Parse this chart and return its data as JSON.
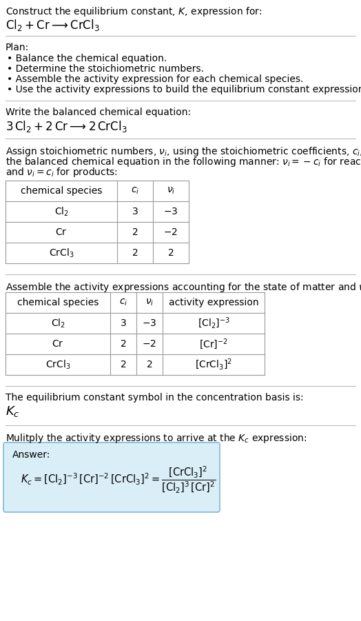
{
  "title_line1": "Construct the equilibrium constant, $K$, expression for:",
  "title_line2": "$\\mathrm{Cl_2 + Cr \\longrightarrow CrCl_3}$",
  "plan_header": "Plan:",
  "plan_items": [
    "• Balance the chemical equation.",
    "• Determine the stoichiometric numbers.",
    "• Assemble the activity expression for each chemical species.",
    "• Use the activity expressions to build the equilibrium constant expression."
  ],
  "balanced_header": "Write the balanced chemical equation:",
  "balanced_eq": "$3\\,\\mathrm{Cl_2} + 2\\,\\mathrm{Cr} \\longrightarrow 2\\,\\mathrm{CrCl_3}$",
  "stoich_intro_lines": [
    "Assign stoichiometric numbers, $\\nu_i$, using the stoichiometric coefficients, $c_i$, from",
    "the balanced chemical equation in the following manner: $\\nu_i = -c_i$ for reactants",
    "and $\\nu_i = c_i$ for products:"
  ],
  "table1_headers": [
    "chemical species",
    "$c_i$",
    "$\\nu_i$"
  ],
  "table1_rows": [
    [
      "$\\mathrm{Cl_2}$",
      "3",
      "$-3$"
    ],
    [
      "$\\mathrm{Cr}$",
      "2",
      "$-2$"
    ],
    [
      "$\\mathrm{CrCl_3}$",
      "2",
      "2"
    ]
  ],
  "assemble_header": "Assemble the activity expressions accounting for the state of matter and $\\nu_i$:",
  "table2_headers": [
    "chemical species",
    "$c_i$",
    "$\\nu_i$",
    "activity expression"
  ],
  "table2_rows": [
    [
      "$\\mathrm{Cl_2}$",
      "3",
      "$-3$",
      "$[\\mathrm{Cl_2}]^{-3}$"
    ],
    [
      "$\\mathrm{Cr}$",
      "2",
      "$-2$",
      "$[\\mathrm{Cr}]^{-2}$"
    ],
    [
      "$\\mathrm{CrCl_3}$",
      "2",
      "2",
      "$[\\mathrm{CrCl_3}]^{2}$"
    ]
  ],
  "kc_symbol_text": "The equilibrium constant symbol in the concentration basis is:",
  "kc_symbol": "$K_c$",
  "multiply_text": "Mulitply the activity expressions to arrive at the $K_c$ expression:",
  "answer_label": "Answer:",
  "answer_eq_line1": "$K_c = [\\mathrm{Cl_2}]^{-3}\\,[\\mathrm{Cr}]^{-2}\\,[\\mathrm{CrCl_3}]^{2} = \\dfrac{[\\mathrm{CrCl_3}]^{2}}{[\\mathrm{Cl_2}]^{3}\\,[\\mathrm{Cr}]^{2}}$",
  "bg_color": "#ffffff",
  "answer_box_color": "#daeef8",
  "answer_box_border": "#7fb9d4",
  "table_border_color": "#999999",
  "text_color": "#000000",
  "separator_color": "#bbbbbb"
}
